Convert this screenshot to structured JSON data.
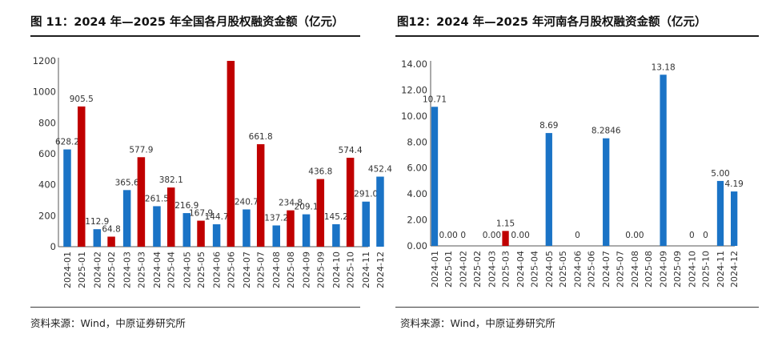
{
  "colors": {
    "blue": "#1A73C6",
    "red": "#C00000",
    "axis": "#555555",
    "label": "#333333"
  },
  "charts": [
    {
      "title": "图 11：2024 年—2025 年全国各月股权融资金额（亿元）",
      "source": "资料来源：Wind，中原证券研究所",
      "chart_data": {
        "type": "bar",
        "categories": [
          "2024-01",
          "2025-01",
          "2024-02",
          "2025-02",
          "2024-03",
          "2025-03",
          "2024-04",
          "2025-04",
          "2024-05",
          "2025-05",
          "2024-06",
          "2025-06",
          "2024-07",
          "2025-07",
          "2024-08",
          "2025-08",
          "2024-09",
          "2025-09",
          "2024-10",
          "2025-10",
          "2024-11",
          "2024-12"
        ],
        "values": [
          628.2,
          905.5,
          112.9,
          64.8,
          365.6,
          577.9,
          261.5,
          382.1,
          216.9,
          167.9,
          144.7,
          1200,
          240.7,
          661.8,
          137.2,
          234.8,
          209.1,
          436.8,
          145.2,
          574.4,
          291.0,
          452.4
        ],
        "labels": [
          "628.2",
          "905.5",
          "112.9",
          "64.8",
          "365.6",
          "577.9",
          "261.5",
          "382.1",
          "216.9",
          "167.9",
          "144.7",
          "",
          "240.7",
          "661.8",
          "137.2",
          "234.8",
          "209.1",
          "436.8",
          "145.2",
          "574.4",
          "291.0",
          "452.4"
        ],
        "colors": [
          "blue",
          "red",
          "blue",
          "red",
          "blue",
          "red",
          "blue",
          "red",
          "blue",
          "red",
          "blue",
          "red",
          "blue",
          "red",
          "blue",
          "red",
          "blue",
          "red",
          "blue",
          "red",
          "blue",
          "blue"
        ],
        "yticks": [
          "0",
          "200",
          "400",
          "600",
          "800",
          "1000",
          "1200"
        ],
        "ylim": [
          0,
          1200
        ],
        "grid": false
      }
    },
    {
      "title": "图12：2024 年—2025 年河南各月股权融资金额（亿元）",
      "source": "资料来源：Wind，中原证券研究所",
      "chart_data": {
        "type": "bar",
        "categories": [
          "2024-01",
          "2025-01",
          "2024-02",
          "2025-02",
          "2024-03",
          "2025-03",
          "2024-04",
          "2025-04",
          "2024-05",
          "2025-05",
          "2024-06",
          "2025-06",
          "2024-07",
          "2025-07",
          "2024-08",
          "2025-08",
          "2024-09",
          "2025-09",
          "2024-10",
          "2025-10",
          "2024-11",
          "2024-12"
        ],
        "values": [
          10.71,
          0,
          0,
          0,
          0,
          1.15,
          0,
          0,
          8.69,
          0,
          0,
          0,
          8.2846,
          0,
          0,
          0,
          13.18,
          0,
          0,
          0,
          5.0,
          4.19
        ],
        "labels": [
          "10.71",
          "0.00",
          "0",
          "",
          "0.00",
          "1.15",
          "0.00",
          "",
          "8.69",
          "",
          "0",
          "",
          "8.2846",
          "",
          "0.00",
          "",
          "13.18",
          "",
          "0",
          "0",
          "5.00",
          "4.19"
        ],
        "colors": [
          "blue",
          "red",
          "blue",
          "red",
          "blue",
          "red",
          "blue",
          "red",
          "blue",
          "red",
          "blue",
          "red",
          "blue",
          "red",
          "blue",
          "red",
          "blue",
          "red",
          "blue",
          "red",
          "blue",
          "blue"
        ],
        "yticks": [
          "0.00",
          "2.00",
          "4.00",
          "6.00",
          "8.00",
          "10.00",
          "12.00",
          "14.00"
        ],
        "ylim": [
          0,
          14
        ],
        "grid": false
      }
    }
  ]
}
